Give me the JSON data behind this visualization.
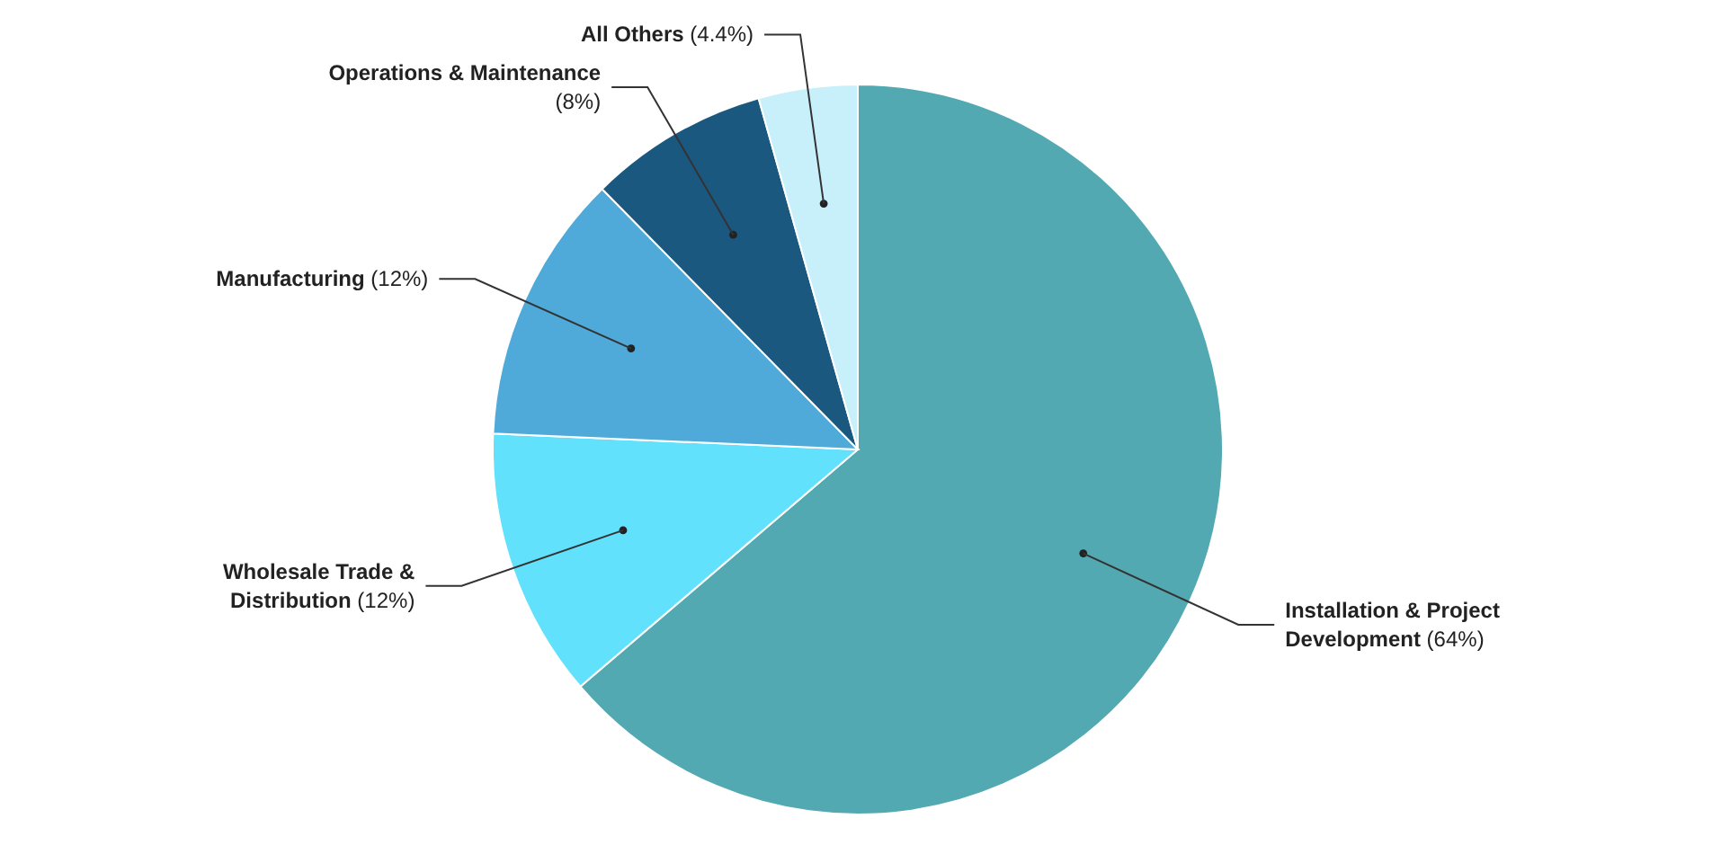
{
  "chart_data": {
    "type": "pie",
    "categories": [
      "Installation & Project Development",
      "Wholesale Trade & Distribution",
      "Manufacturing",
      "Operations & Maintenance",
      "All Others"
    ],
    "values": [
      64,
      12,
      12,
      8,
      4.4
    ],
    "value_labels": [
      "(64%)",
      "(12%)",
      "(12%)",
      "(8%)",
      "(4.4%)"
    ],
    "colors": [
      "#53a9b1",
      "#61e1fb",
      "#4fa9d9",
      "#1a5880",
      "#c7f0fb"
    ],
    "legend": false
  }
}
